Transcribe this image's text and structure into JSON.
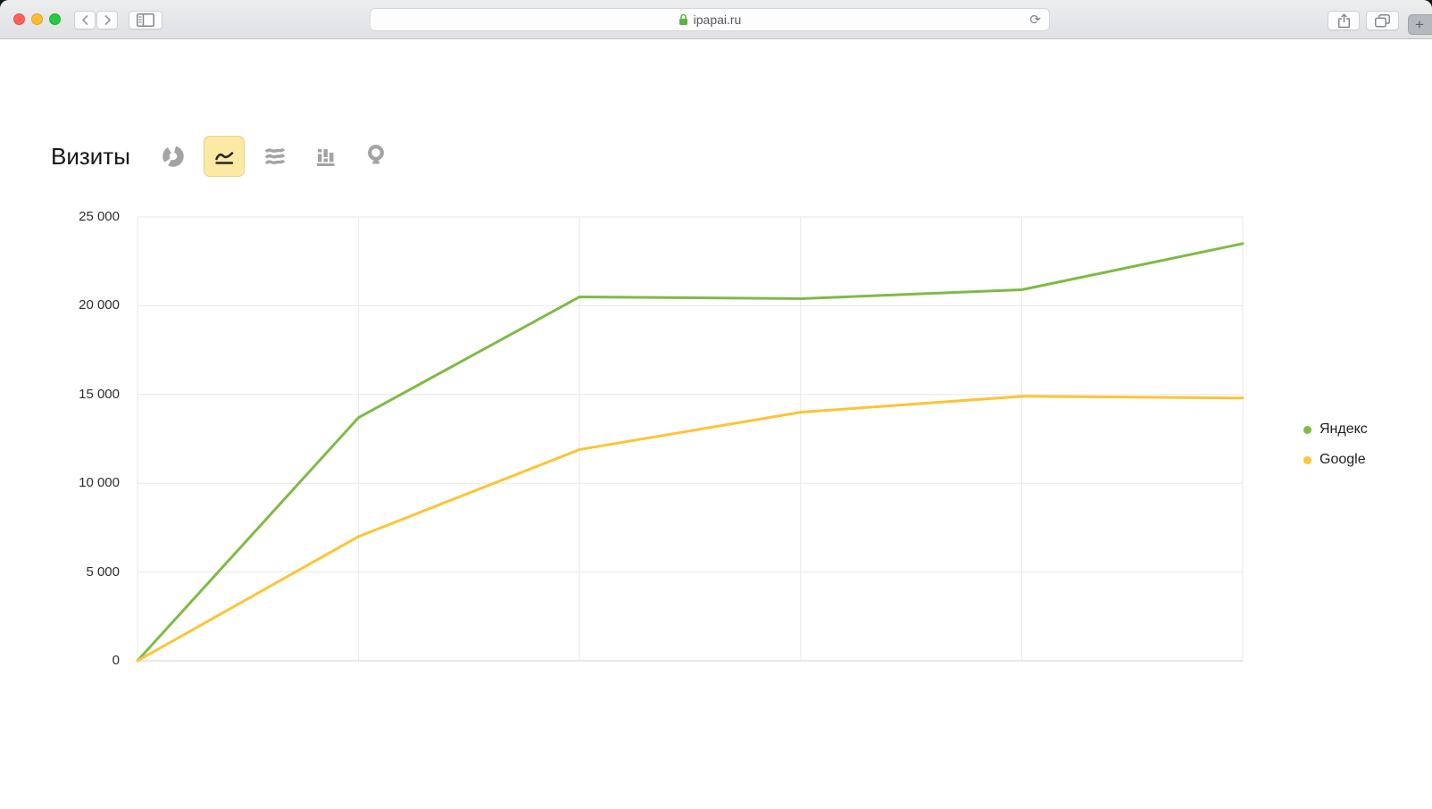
{
  "browser": {
    "url_text": "ipapai.ru",
    "toolbar_icons": {
      "back": "chevron-left-icon",
      "forward": "chevron-right-icon",
      "sidebar": "sidebar-toggle-icon",
      "lock": "secure-padlock-icon",
      "reload": "⟳",
      "share": "share-icon",
      "tabs": "tab-overview-icon",
      "new_tab_label": "+"
    }
  },
  "page": {
    "title": "Визиты",
    "chart_type_toolbar": [
      {
        "id": "pie",
        "icon": "pie-chart-icon",
        "selected": false
      },
      {
        "id": "line",
        "icon": "line-chart-icon",
        "selected": true
      },
      {
        "id": "stacked",
        "icon": "stacked-area-chart-icon",
        "selected": false
      },
      {
        "id": "bars",
        "icon": "bar-chart-icon",
        "selected": false
      },
      {
        "id": "map",
        "icon": "map-pin-icon",
        "selected": false
      }
    ]
  },
  "chart_data": {
    "type": "line",
    "title": "Визиты",
    "x": [
      1,
      2,
      3,
      4,
      5,
      6
    ],
    "x_tick_labels": [],
    "series": [
      {
        "name": "Яндекс",
        "color": "#7fba45",
        "values": [
          0,
          13700,
          20500,
          20400,
          20900,
          23500
        ]
      },
      {
        "name": "Google",
        "color": "#fcc436",
        "values": [
          0,
          7000,
          11900,
          14000,
          14900,
          14800
        ]
      }
    ],
    "ylim": [
      0,
      25000
    ],
    "y_ticks": [
      {
        "value": 25000,
        "label": "25 000"
      },
      {
        "value": 20000,
        "label": "20 000"
      },
      {
        "value": 15000,
        "label": "15 000"
      },
      {
        "value": 10000,
        "label": "10 000"
      },
      {
        "value": 5000,
        "label": "5 000"
      },
      {
        "value": 0,
        "label": "0"
      }
    ],
    "grid": true,
    "legend_position": "right",
    "colors": {
      "grid": "#e8e8e8",
      "axis": "#d2d4d6"
    }
  }
}
